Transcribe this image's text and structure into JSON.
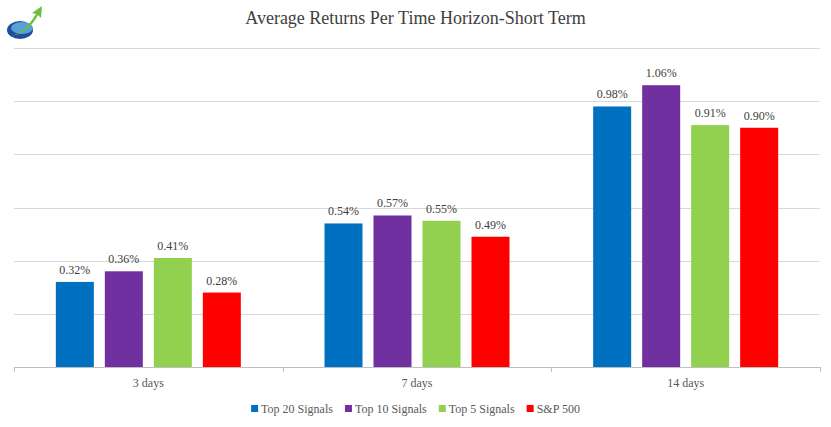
{
  "chart_data": {
    "type": "bar",
    "title": "Average Returns Per Time Horizon-Short Term",
    "categories": [
      "3 days",
      "7 days",
      "14 days"
    ],
    "series": [
      {
        "name": "Top 20 Signals",
        "color": "#0070c0",
        "values": [
          0.32,
          0.54,
          0.98
        ],
        "value_labels": [
          "0.32%",
          "0.54%",
          "0.98%"
        ]
      },
      {
        "name": "Top 10 Signals",
        "color": "#7030a0",
        "values": [
          0.36,
          0.57,
          1.06
        ],
        "value_labels": [
          "0.36%",
          "0.57%",
          "1.06%"
        ]
      },
      {
        "name": "Top 5 Signals",
        "color": "#92d050",
        "values": [
          0.41,
          0.55,
          0.91
        ],
        "value_labels": [
          "0.41%",
          "0.55%",
          "0.91%"
        ]
      },
      {
        "name": "S&P 500",
        "color": "#ff0000",
        "values": [
          0.28,
          0.49,
          0.9
        ],
        "value_labels": [
          "0.28%",
          "0.49%",
          "0.90%"
        ]
      }
    ],
    "ylim": [
      0,
      1.2
    ],
    "yticks": [
      0,
      0.2,
      0.4,
      0.6,
      0.8,
      1.0,
      1.2
    ],
    "grid": true,
    "legend": "bottom",
    "data_labels": true,
    "tick_labels": "x"
  }
}
